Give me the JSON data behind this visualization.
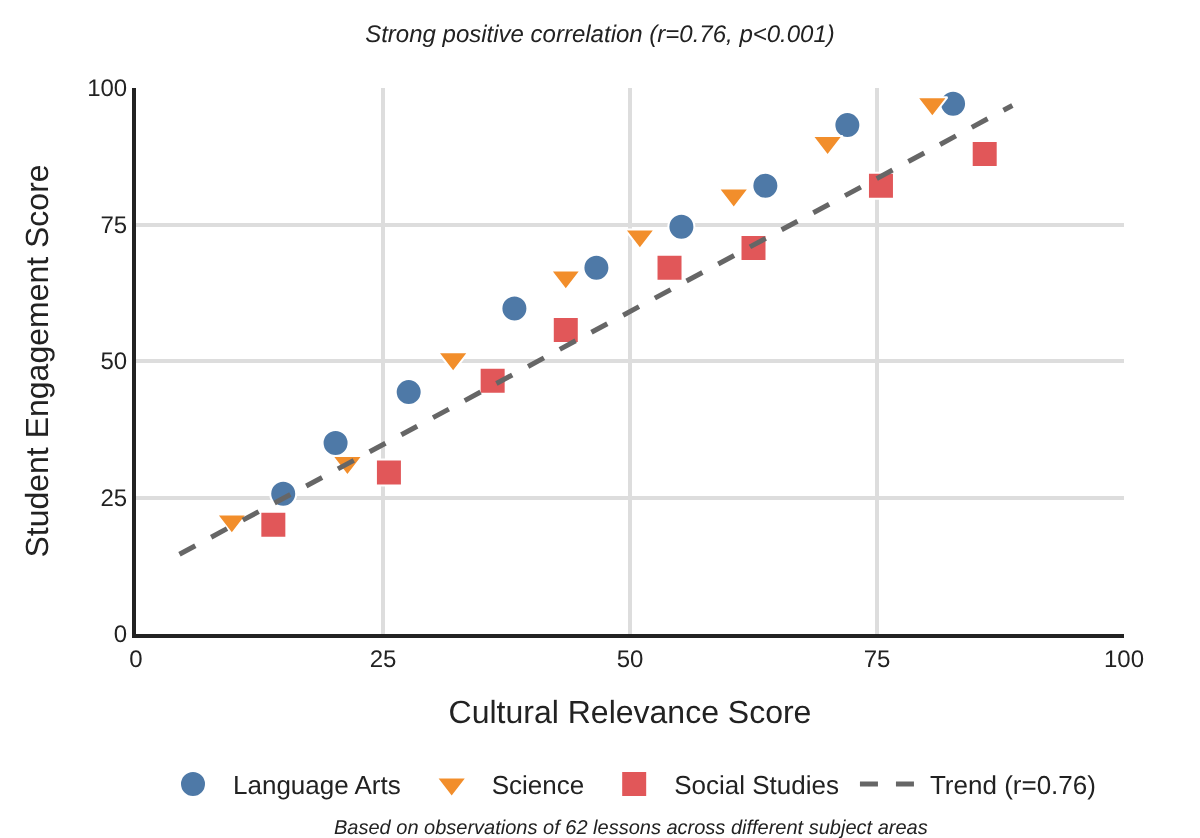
{
  "chart_data": {
    "type": "scatter",
    "title": "Strong positive correlation (r=0.76, p<0.001)",
    "xlabel": "Cultural Relevance Score",
    "ylabel": "Student Engagement Score",
    "xlim": [
      0,
      100
    ],
    "ylim": [
      0,
      100
    ],
    "xticks": [
      0,
      25,
      50,
      75,
      100
    ],
    "yticks": [
      0,
      25,
      50,
      75,
      100
    ],
    "grid": true,
    "legend": "bottom",
    "series": [
      {
        "name": "Language Arts",
        "color": "#4e79a7",
        "marker": "circle",
        "x": [
          14.9,
          20.2,
          27.6,
          38.3,
          46.6,
          55.2,
          63.7,
          72.0,
          82.7
        ],
        "values": [
          25.7,
          35,
          44.3,
          59.6,
          67.1,
          74.6,
          82.1,
          93.2,
          97.1
        ]
      },
      {
        "name": "Science",
        "color": "#f28e2b",
        "marker": "triangle",
        "x": [
          9.7,
          21.4,
          32.1,
          43.5,
          51,
          60.5,
          70,
          80.6
        ],
        "values": [
          20.7,
          31.4,
          50.4,
          65.4,
          72.9,
          80.4,
          90,
          97.1
        ]
      },
      {
        "name": "Social Studies",
        "color": "#e15759",
        "marker": "square",
        "x": [
          13.9,
          25.6,
          36.1,
          43.5,
          54,
          62.5,
          75.4,
          85.9
        ],
        "values": [
          20,
          29.6,
          46.4,
          55.7,
          67.1,
          70.7,
          82.1,
          87.9
        ]
      },
      {
        "name": "Trend (r=0.76)",
        "type": "line",
        "color": "#666666",
        "line_style": "dashed",
        "marker": "none",
        "x": [
          4.4,
          88.7
        ],
        "values": [
          14.6,
          96.8
        ]
      }
    ],
    "annotations": [
      "Based on observations of 62 lessons across different subject areas"
    ]
  }
}
